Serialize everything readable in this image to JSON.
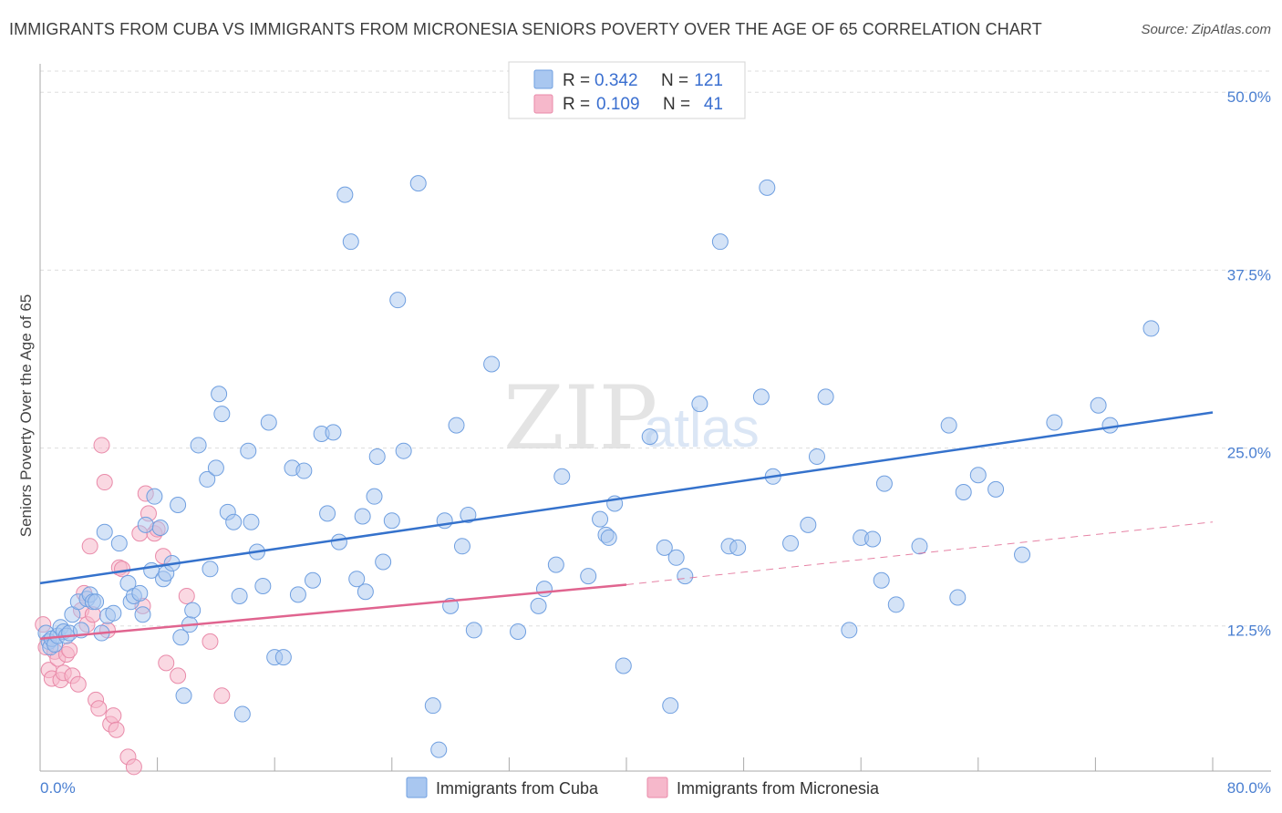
{
  "header": {
    "title": "IMMIGRANTS FROM CUBA VS IMMIGRANTS FROM MICRONESIA SENIORS POVERTY OVER THE AGE OF 65 CORRELATION CHART",
    "source": "Source: ZipAtlas.com"
  },
  "watermark": {
    "zip": "ZIP",
    "atlas": "atlas"
  },
  "colors": {
    "cuba_fill": "#a9c7f0",
    "cuba_stroke": "#6f9fe0",
    "cuba_line": "#3572cc",
    "micronesia_fill": "#f6b8cb",
    "micronesia_stroke": "#e98aa9",
    "micronesia_line": "#e0648f",
    "grid": "#dddddd",
    "tick_text": "#4a7fd1"
  },
  "legend": {
    "rows": [
      {
        "r_label": "R = ",
        "r_value": "0.342",
        "n_label": "N = ",
        "n_value": "121"
      },
      {
        "r_label": "R = ",
        "r_value": "0.109",
        "n_label": "N = ",
        "n_value": "41"
      }
    ]
  },
  "chart_data": {
    "type": "scatter",
    "title": "IMMIGRANTS FROM CUBA VS IMMIGRANTS FROM MICRONESIA SENIORS POVERTY OVER THE AGE OF 65 CORRELATION CHART",
    "xlabel": "",
    "ylabel": "Seniors Poverty Over the Age of 65",
    "xlim": [
      0,
      80
    ],
    "ylim": [
      2.3,
      52.0
    ],
    "x_tick_labels": [
      "0.0%",
      "80.0%"
    ],
    "y_ticks": [
      12.5,
      25.0,
      37.5,
      50.0
    ],
    "y_tick_labels": [
      "12.5%",
      "25.0%",
      "37.5%",
      "50.0%"
    ],
    "grid": true,
    "legend_position": "top-center",
    "series": [
      {
        "name": "Immigrants from Cuba",
        "R": 0.342,
        "N": 121,
        "trend": {
          "x": [
            0,
            80
          ],
          "y": [
            15.5,
            27.5
          ]
        },
        "points": [
          [
            0.4,
            12.0
          ],
          [
            0.6,
            11.4
          ],
          [
            0.7,
            11.0
          ],
          [
            0.8,
            11.6
          ],
          [
            1.0,
            11.2
          ],
          [
            1.2,
            11.8
          ],
          [
            1.4,
            12.4
          ],
          [
            1.6,
            12.1
          ],
          [
            1.8,
            11.8
          ],
          [
            2.0,
            12.0
          ],
          [
            2.2,
            13.3
          ],
          [
            2.6,
            14.2
          ],
          [
            2.8,
            12.2
          ],
          [
            3.2,
            14.4
          ],
          [
            3.4,
            14.7
          ],
          [
            3.6,
            14.2
          ],
          [
            3.8,
            14.2
          ],
          [
            4.2,
            12.0
          ],
          [
            4.4,
            19.1
          ],
          [
            4.6,
            13.2
          ],
          [
            5.0,
            13.4
          ],
          [
            5.4,
            18.3
          ],
          [
            6.0,
            15.5
          ],
          [
            6.2,
            14.2
          ],
          [
            6.4,
            14.6
          ],
          [
            6.8,
            14.8
          ],
          [
            7.0,
            13.3
          ],
          [
            7.2,
            19.6
          ],
          [
            7.6,
            16.4
          ],
          [
            7.8,
            21.6
          ],
          [
            8.2,
            19.4
          ],
          [
            8.4,
            15.8
          ],
          [
            8.6,
            16.2
          ],
          [
            9.0,
            16.9
          ],
          [
            9.4,
            21.0
          ],
          [
            9.6,
            11.7
          ],
          [
            9.8,
            7.6
          ],
          [
            10.2,
            12.6
          ],
          [
            10.4,
            13.6
          ],
          [
            10.8,
            25.2
          ],
          [
            11.4,
            22.8
          ],
          [
            11.6,
            16.5
          ],
          [
            12.0,
            23.6
          ],
          [
            12.2,
            28.8
          ],
          [
            12.4,
            27.4
          ],
          [
            12.8,
            20.5
          ],
          [
            13.2,
            19.8
          ],
          [
            13.6,
            14.6
          ],
          [
            13.8,
            6.3
          ],
          [
            14.2,
            24.8
          ],
          [
            14.4,
            19.8
          ],
          [
            14.8,
            17.7
          ],
          [
            15.2,
            15.3
          ],
          [
            15.6,
            26.8
          ],
          [
            16.0,
            10.3
          ],
          [
            16.6,
            10.3
          ],
          [
            17.2,
            23.6
          ],
          [
            17.6,
            14.7
          ],
          [
            18.0,
            23.4
          ],
          [
            18.6,
            15.7
          ],
          [
            19.2,
            26.0
          ],
          [
            19.6,
            20.4
          ],
          [
            20.0,
            26.1
          ],
          [
            20.4,
            18.4
          ],
          [
            20.8,
            42.8
          ],
          [
            21.2,
            39.5
          ],
          [
            21.6,
            15.8
          ],
          [
            22.0,
            20.2
          ],
          [
            22.2,
            14.9
          ],
          [
            22.8,
            21.6
          ],
          [
            23.0,
            24.4
          ],
          [
            23.4,
            17.0
          ],
          [
            24.0,
            19.9
          ],
          [
            24.4,
            35.4
          ],
          [
            24.8,
            24.8
          ],
          [
            25.8,
            43.6
          ],
          [
            26.8,
            6.9
          ],
          [
            27.2,
            3.8
          ],
          [
            27.6,
            19.9
          ],
          [
            28.0,
            13.9
          ],
          [
            28.4,
            26.6
          ],
          [
            28.8,
            18.1
          ],
          [
            29.2,
            20.3
          ],
          [
            29.6,
            12.2
          ],
          [
            30.8,
            30.9
          ],
          [
            32.6,
            12.1
          ],
          [
            34.0,
            13.9
          ],
          [
            34.4,
            15.1
          ],
          [
            35.2,
            16.8
          ],
          [
            35.6,
            23.0
          ],
          [
            37.4,
            16.0
          ],
          [
            38.2,
            20.0
          ],
          [
            38.6,
            18.9
          ],
          [
            38.8,
            18.7
          ],
          [
            39.2,
            21.1
          ],
          [
            39.8,
            9.7
          ],
          [
            41.6,
            25.8
          ],
          [
            42.6,
            18.0
          ],
          [
            43.0,
            6.9
          ],
          [
            43.4,
            17.3
          ],
          [
            44.0,
            16.0
          ],
          [
            45.0,
            28.1
          ],
          [
            46.4,
            39.5
          ],
          [
            47.0,
            18.1
          ],
          [
            47.6,
            18.0
          ],
          [
            49.2,
            28.6
          ],
          [
            49.6,
            43.3
          ],
          [
            50.0,
            23.0
          ],
          [
            51.2,
            18.3
          ],
          [
            52.4,
            19.6
          ],
          [
            53.0,
            24.4
          ],
          [
            53.6,
            28.6
          ],
          [
            55.2,
            12.2
          ],
          [
            56.0,
            18.7
          ],
          [
            56.8,
            18.6
          ],
          [
            57.4,
            15.7
          ],
          [
            57.6,
            22.5
          ],
          [
            58.4,
            14.0
          ],
          [
            60.0,
            18.1
          ],
          [
            62.0,
            26.6
          ],
          [
            62.6,
            14.5
          ],
          [
            63.0,
            21.9
          ],
          [
            64.0,
            23.1
          ],
          [
            65.2,
            22.1
          ],
          [
            67.0,
            17.5
          ],
          [
            69.2,
            26.8
          ],
          [
            72.2,
            28.0
          ],
          [
            73.0,
            26.6
          ],
          [
            75.8,
            33.4
          ]
        ]
      },
      {
        "name": "Immigrants from Micronesia",
        "R": 0.109,
        "N": 41,
        "trend": {
          "x": [
            0,
            40
          ],
          "y": [
            11.6,
            15.4
          ]
        },
        "trend_extension": {
          "x": [
            40,
            80
          ],
          "y": [
            15.4,
            19.8
          ]
        },
        "points": [
          [
            0.2,
            12.6
          ],
          [
            0.4,
            11.0
          ],
          [
            0.6,
            9.4
          ],
          [
            0.8,
            8.8
          ],
          [
            1.0,
            10.7
          ],
          [
            1.2,
            10.2
          ],
          [
            1.4,
            8.7
          ],
          [
            1.6,
            9.2
          ],
          [
            1.8,
            10.5
          ],
          [
            2.0,
            10.8
          ],
          [
            2.2,
            9.0
          ],
          [
            2.6,
            8.4
          ],
          [
            2.8,
            13.6
          ],
          [
            3.0,
            14.8
          ],
          [
            3.2,
            12.6
          ],
          [
            3.4,
            18.1
          ],
          [
            3.6,
            13.3
          ],
          [
            3.8,
            7.3
          ],
          [
            4.0,
            6.7
          ],
          [
            4.2,
            25.2
          ],
          [
            4.4,
            22.6
          ],
          [
            4.6,
            12.2
          ],
          [
            4.8,
            5.6
          ],
          [
            5.0,
            6.2
          ],
          [
            5.2,
            5.2
          ],
          [
            5.4,
            16.6
          ],
          [
            5.6,
            16.5
          ],
          [
            6.0,
            3.3
          ],
          [
            6.4,
            2.6
          ],
          [
            6.8,
            19.0
          ],
          [
            7.0,
            13.9
          ],
          [
            7.2,
            21.8
          ],
          [
            7.4,
            20.4
          ],
          [
            7.8,
            19.0
          ],
          [
            8.0,
            19.3
          ],
          [
            8.4,
            17.4
          ],
          [
            8.6,
            9.9
          ],
          [
            9.4,
            9.0
          ],
          [
            10.0,
            14.6
          ],
          [
            11.6,
            11.4
          ],
          [
            12.4,
            7.6
          ]
        ]
      }
    ]
  },
  "bottom_legend": {
    "items": [
      "Immigrants from Cuba",
      "Immigrants from Micronesia"
    ]
  },
  "axis": {
    "ylabel": "Seniors Poverty Over the Age of 65",
    "x_min_label": "0.0%",
    "x_max_label": "80.0%"
  }
}
